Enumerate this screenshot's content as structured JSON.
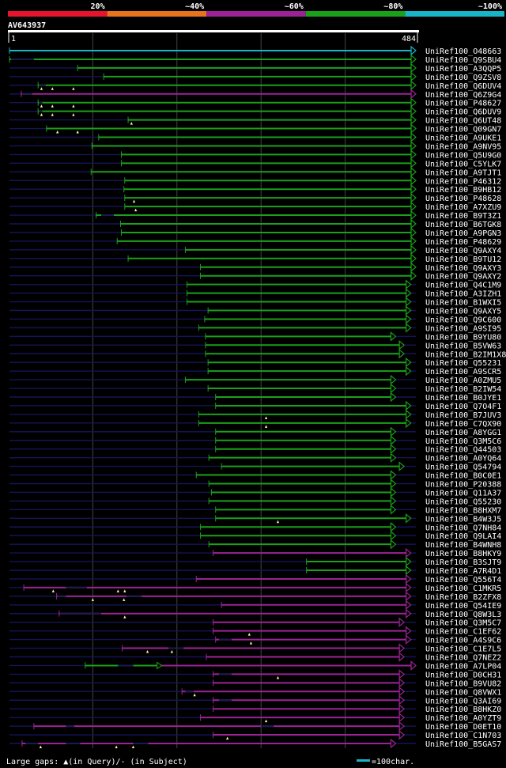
{
  "query": {
    "name": "AV643937",
    "start_label": "1",
    "end_label": "484",
    "length": 484
  },
  "scale_legend": {
    "labels": [
      "20%",
      "~40%",
      "~60%",
      "~80%",
      "~100%"
    ],
    "colors": [
      "#e8142d",
      "#e8731e",
      "#9b2396",
      "#1ba01b",
      "#19b4c8"
    ]
  },
  "identity_colors": {
    "100": "#19b4c8",
    "80": "#1ba01b",
    "60": "#9b2396"
  },
  "footer": {
    "gaps_text": "Large gaps: ▲(in Query)/- (in Subject)",
    "scale_text": "=100char."
  },
  "chart_data": {
    "type": "alignment",
    "x_range": [
      1,
      484
    ],
    "tick_positions": [
      100,
      200,
      300,
      400
    ],
    "hits": [
      {
        "name": "UniRef100_O48663",
        "start": 1,
        "end": 484,
        "identity": "100",
        "open": [],
        "gaps": [],
        "arrow": true
      },
      {
        "name": "UniRef100_Q9SBU4",
        "start": 1,
        "end": 484,
        "identity": "80",
        "open": [
          [
            3,
            30
          ]
        ],
        "gaps": [],
        "arrow": true
      },
      {
        "name": "UniRef100_A3QQP5",
        "start": 82,
        "end": 484,
        "identity": "80",
        "open": [],
        "gaps": [],
        "arrow": true
      },
      {
        "name": "UniRef100_Q9ZSV8",
        "start": 113,
        "end": 484,
        "identity": "80",
        "open": [],
        "gaps": [],
        "arrow": true
      },
      {
        "name": "UniRef100_Q6DUV4",
        "start": 35,
        "end": 484,
        "identity": "80",
        "open": [
          [
            36,
            44
          ]
        ],
        "gaps": [
          39,
          52,
          77
        ],
        "arrow": true
      },
      {
        "name": "UniRef100_Q6Z9G4",
        "start": 15,
        "end": 484,
        "identity": "60",
        "open": [
          [
            16,
            28
          ]
        ],
        "gaps": [],
        "arrow": true
      },
      {
        "name": "UniRef100_P48627",
        "start": 35,
        "end": 484,
        "identity": "80",
        "open": [
          [
            36,
            40
          ]
        ],
        "gaps": [
          39,
          52,
          77
        ],
        "arrow": true
      },
      {
        "name": "UniRef100_Q6DUV9",
        "start": 35,
        "end": 484,
        "identity": "80",
        "open": [
          [
            36,
            40
          ]
        ],
        "gaps": [
          39,
          52,
          77
        ],
        "arrow": true
      },
      {
        "name": "UniRef100_Q6UT48",
        "start": 142,
        "end": 484,
        "identity": "80",
        "open": [],
        "gaps": [
          146
        ],
        "arrow": true
      },
      {
        "name": "UniRef100_Q09GN7",
        "start": 45,
        "end": 484,
        "identity": "80",
        "open": [],
        "gaps": [
          58,
          82
        ],
        "arrow": true
      },
      {
        "name": "UniRef100_A9UKE1",
        "start": 107,
        "end": 484,
        "identity": "80",
        "open": [],
        "gaps": [],
        "arrow": true
      },
      {
        "name": "UniRef100_A9NV95",
        "start": 99,
        "end": 484,
        "identity": "80",
        "open": [],
        "gaps": [],
        "arrow": true
      },
      {
        "name": "UniRef100_Q5U9G0",
        "start": 134,
        "end": 484,
        "identity": "80",
        "open": [],
        "gaps": [],
        "arrow": true
      },
      {
        "name": "UniRef100_C5YLK7",
        "start": 134,
        "end": 484,
        "identity": "80",
        "open": [],
        "gaps": [],
        "arrow": true
      },
      {
        "name": "UniRef100_A9TJT1",
        "start": 98,
        "end": 484,
        "identity": "80",
        "open": [],
        "gaps": [],
        "arrow": true
      },
      {
        "name": "UniRef100_P46312",
        "start": 138,
        "end": 484,
        "identity": "80",
        "open": [],
        "gaps": [],
        "arrow": true
      },
      {
        "name": "UniRef100_B9HB12",
        "start": 137,
        "end": 484,
        "identity": "80",
        "open": [],
        "gaps": [],
        "arrow": true
      },
      {
        "name": "UniRef100_P48628",
        "start": 138,
        "end": 484,
        "identity": "80",
        "open": [],
        "gaps": [
          149
        ],
        "arrow": true
      },
      {
        "name": "UniRef100_A7XZU9",
        "start": 138,
        "end": 484,
        "identity": "80",
        "open": [],
        "gaps": [
          151
        ],
        "arrow": true
      },
      {
        "name": "UniRef100_B9T3Z1",
        "start": 104,
        "end": 484,
        "identity": "80",
        "open": [
          [
            110,
            125
          ]
        ],
        "gaps": [],
        "arrow": true
      },
      {
        "name": "UniRef100_B6TGK8",
        "start": 133,
        "end": 484,
        "identity": "80",
        "open": [],
        "gaps": [],
        "arrow": true
      },
      {
        "name": "UniRef100_A9PGN3",
        "start": 134,
        "end": 484,
        "identity": "80",
        "open": [],
        "gaps": [],
        "arrow": true
      },
      {
        "name": "UniRef100_P48629",
        "start": 129,
        "end": 484,
        "identity": "80",
        "open": [],
        "gaps": [],
        "arrow": true
      },
      {
        "name": "UniRef100_Q9AXY4",
        "start": 210,
        "end": 484,
        "identity": "80",
        "open": [],
        "gaps": [],
        "arrow": true
      },
      {
        "name": "UniRef100_B9TU12",
        "start": 142,
        "end": 484,
        "identity": "80",
        "open": [],
        "gaps": [],
        "arrow": true
      },
      {
        "name": "UniRef100_Q9AXY3",
        "start": 228,
        "end": 484,
        "identity": "80",
        "open": [],
        "gaps": [],
        "arrow": true
      },
      {
        "name": "UniRef100_Q9AXY2",
        "start": 228,
        "end": 484,
        "identity": "80",
        "open": [],
        "gaps": [],
        "arrow": true
      },
      {
        "name": "UniRef100_Q4C1M9",
        "start": 212,
        "end": 478,
        "identity": "80",
        "open": [],
        "gaps": [],
        "arrow": true
      },
      {
        "name": "UniRef100_A3IZH1",
        "start": 212,
        "end": 478,
        "identity": "80",
        "open": [],
        "gaps": [],
        "arrow": true
      },
      {
        "name": "UniRef100_B1WXI5",
        "start": 212,
        "end": 478,
        "identity": "80",
        "open": [],
        "gaps": [],
        "arrow": true
      },
      {
        "name": "UniRef100_Q9AXY5",
        "start": 237,
        "end": 478,
        "identity": "80",
        "open": [],
        "gaps": [],
        "arrow": true
      },
      {
        "name": "UniRef100_Q9C600",
        "start": 233,
        "end": 478,
        "identity": "80",
        "open": [],
        "gaps": [],
        "arrow": true
      },
      {
        "name": "UniRef100_A9SI95",
        "start": 226,
        "end": 478,
        "identity": "80",
        "open": [],
        "gaps": [],
        "arrow": true
      },
      {
        "name": "UniRef100_B9YU80",
        "start": 234,
        "end": 460,
        "identity": "80",
        "open": [],
        "gaps": [],
        "arrow": true
      },
      {
        "name": "UniRef100_B5VW63",
        "start": 234,
        "end": 470,
        "identity": "80",
        "open": [],
        "gaps": [],
        "arrow": true
      },
      {
        "name": "UniRef100_B2IM1X8",
        "start": 234,
        "end": 470,
        "identity": "80",
        "open": [],
        "gaps": [],
        "arrow": true
      },
      {
        "name": "UniRef100_Q55231",
        "start": 237,
        "end": 478,
        "identity": "80",
        "open": [],
        "gaps": [],
        "arrow": true
      },
      {
        "name": "UniRef100_A9SCR5",
        "start": 237,
        "end": 478,
        "identity": "80",
        "open": [],
        "gaps": [],
        "arrow": true
      },
      {
        "name": "UniRef100_A0ZMU5",
        "start": 210,
        "end": 460,
        "identity": "80",
        "open": [],
        "gaps": [],
        "arrow": true
      },
      {
        "name": "UniRef100_B2IW54",
        "start": 237,
        "end": 460,
        "identity": "80",
        "open": [],
        "gaps": [],
        "arrow": true
      },
      {
        "name": "UniRef100_B0JYE1",
        "start": 246,
        "end": 460,
        "identity": "80",
        "open": [],
        "gaps": [],
        "arrow": true
      },
      {
        "name": "UniRef100_Q7O4F1",
        "start": 246,
        "end": 478,
        "identity": "80",
        "open": [],
        "gaps": [],
        "arrow": true
      },
      {
        "name": "UniRef100_B7JUV3",
        "start": 226,
        "end": 478,
        "identity": "80",
        "open": [],
        "gaps": [
          306
        ],
        "arrow": true
      },
      {
        "name": "UniRef100_C7QX90",
        "start": 226,
        "end": 478,
        "identity": "80",
        "open": [],
        "gaps": [
          306
        ],
        "arrow": true
      },
      {
        "name": "UniRef100_A8YGG1",
        "start": 246,
        "end": 460,
        "identity": "80",
        "open": [],
        "gaps": [],
        "arrow": true
      },
      {
        "name": "UniRef100_Q3M5C6",
        "start": 246,
        "end": 460,
        "identity": "80",
        "open": [],
        "gaps": [],
        "arrow": true
      },
      {
        "name": "UniRef100_Q44503",
        "start": 246,
        "end": 460,
        "identity": "80",
        "open": [],
        "gaps": [],
        "arrow": true
      },
      {
        "name": "UniRef100_A0YQ64",
        "start": 238,
        "end": 460,
        "identity": "80",
        "open": [],
        "gaps": [],
        "arrow": true
      },
      {
        "name": "UniRef100_Q54794",
        "start": 253,
        "end": 470,
        "identity": "80",
        "open": [],
        "gaps": [],
        "arrow": true
      },
      {
        "name": "UniRef100_B0C0E1",
        "start": 223,
        "end": 460,
        "identity": "80",
        "open": [],
        "gaps": [],
        "arrow": true
      },
      {
        "name": "UniRef100_P20388",
        "start": 238,
        "end": 460,
        "identity": "80",
        "open": [],
        "gaps": [],
        "arrow": true
      },
      {
        "name": "UniRef100_Q11A37",
        "start": 241,
        "end": 460,
        "identity": "80",
        "open": [],
        "gaps": [],
        "arrow": true
      },
      {
        "name": "UniRef100_Q55230",
        "start": 238,
        "end": 460,
        "identity": "80",
        "open": [],
        "gaps": [],
        "arrow": true
      },
      {
        "name": "UniRef100_B8HXM7",
        "start": 246,
        "end": 460,
        "identity": "80",
        "open": [],
        "gaps": [],
        "arrow": true
      },
      {
        "name": "UniRef100_B4W3J5",
        "start": 246,
        "end": 478,
        "identity": "80",
        "open": [],
        "gaps": [
          320
        ],
        "arrow": true
      },
      {
        "name": "UniRef100_Q7NH84",
        "start": 228,
        "end": 460,
        "identity": "80",
        "open": [],
        "gaps": [],
        "arrow": true
      },
      {
        "name": "UniRef100_Q9LAI4",
        "start": 228,
        "end": 460,
        "identity": "80",
        "open": [],
        "gaps": [],
        "arrow": true
      },
      {
        "name": "UniRef100_B4WNH8",
        "start": 238,
        "end": 460,
        "identity": "80",
        "open": [],
        "gaps": [],
        "arrow": true
      },
      {
        "name": "UniRef100_B8HKY9",
        "start": 243,
        "end": 478,
        "identity": "60",
        "open": [],
        "gaps": [],
        "arrow": true
      },
      {
        "name": "UniRef100_B3SJT9",
        "start": 354,
        "end": 478,
        "identity": "80",
        "open": [],
        "gaps": [],
        "arrow": true
      },
      {
        "name": "UniRef100_A7R4D1",
        "start": 354,
        "end": 478,
        "identity": "80",
        "open": [],
        "gaps": [],
        "arrow": true
      },
      {
        "name": "UniRef100_Q556T4",
        "start": 223,
        "end": 478,
        "identity": "60",
        "open": [],
        "gaps": [],
        "arrow": true
      },
      {
        "name": "UniRef100_C1MKR5",
        "start": 18,
        "end": 478,
        "identity": "60",
        "open": [
          [
            68,
            93
          ]
        ],
        "gaps": [
          53,
          130,
          138
        ],
        "arrow": true
      },
      {
        "name": "UniRef100_B2ZFX8",
        "start": 57,
        "end": 478,
        "identity": "60",
        "open": [
          [
            58,
            68
          ],
          [
            140,
            158
          ]
        ],
        "gaps": [
          100,
          137
        ],
        "arrow": true
      },
      {
        "name": "UniRef100_Q54IE9",
        "start": 253,
        "end": 478,
        "identity": "60",
        "open": [],
        "gaps": [],
        "arrow": true
      },
      {
        "name": "UniRef100_Q8W3L3",
        "start": 60,
        "end": 478,
        "identity": "60",
        "open": [
          [
            61,
            110
          ]
        ],
        "gaps": [
          138
        ],
        "arrow": true
      },
      {
        "name": "UniRef100_Q3M5C7",
        "start": 243,
        "end": 470,
        "identity": "60",
        "open": [],
        "gaps": [],
        "arrow": true
      },
      {
        "name": "UniRef100_C1EF62",
        "start": 243,
        "end": 478,
        "identity": "60",
        "open": [],
        "gaps": [
          286
        ],
        "arrow": true
      },
      {
        "name": "UniRef100_A4S9C6",
        "start": 246,
        "end": 478,
        "identity": "60",
        "open": [
          [
            250,
            265
          ]
        ],
        "gaps": [
          288
        ],
        "arrow": true
      },
      {
        "name": "UniRef100_C1E7L5",
        "start": 135,
        "end": 470,
        "identity": "60",
        "open": [
          [
            190,
            208
          ]
        ],
        "gaps": [
          165,
          194
        ],
        "arrow": true
      },
      {
        "name": "UniRef100_Q7NEZ2",
        "start": 235,
        "end": 470,
        "identity": "60",
        "open": [],
        "gaps": [],
        "arrow": true
      },
      {
        "name": "UniRef100_A7LP04",
        "start": 91,
        "end": 484,
        "identity": "80",
        "open": [
          [
            130,
            148
          ]
        ],
        "gaps": [],
        "arrow": true,
        "split": 182,
        "split_identity": "60"
      },
      {
        "name": "UniRef100_D0CH31",
        "start": 243,
        "end": 470,
        "identity": "60",
        "open": [
          [
            250,
            265
          ]
        ],
        "gaps": [
          320
        ],
        "arrow": true
      },
      {
        "name": "UniRef100_B9VU82",
        "start": 243,
        "end": 470,
        "identity": "60",
        "open": [],
        "gaps": [],
        "arrow": true
      },
      {
        "name": "UniRef100_Q8VWX1",
        "start": 206,
        "end": 470,
        "identity": "60",
        "open": [
          [
            210,
            220
          ]
        ],
        "gaps": [
          221
        ],
        "arrow": true
      },
      {
        "name": "UniRef100_Q3AI69",
        "start": 243,
        "end": 470,
        "identity": "60",
        "open": [
          [
            250,
            265
          ]
        ],
        "gaps": [],
        "arrow": true
      },
      {
        "name": "UniRef100_B8HKZ0",
        "start": 243,
        "end": 470,
        "identity": "60",
        "open": [],
        "gaps": [],
        "arrow": true
      },
      {
        "name": "UniRef100_A0YZT9",
        "start": 228,
        "end": 470,
        "identity": "60",
        "open": [],
        "gaps": [
          306
        ],
        "arrow": true
      },
      {
        "name": "UniRef100_D0ET10",
        "start": 30,
        "end": 470,
        "identity": "60",
        "open": [
          [
            68,
            78
          ],
          [
            300,
            315
          ]
        ],
        "gaps": [],
        "arrow": true
      },
      {
        "name": "UniRef100_C1N703",
        "start": 243,
        "end": 470,
        "identity": "60",
        "open": [],
        "gaps": [
          260
        ],
        "arrow": true
      },
      {
        "name": "UniRef100_B5GAS7",
        "start": 16,
        "end": 460,
        "identity": "60",
        "open": [
          [
            20,
            35
          ],
          [
            68,
            85
          ],
          [
            148,
            166
          ]
        ],
        "gaps": [
          38,
          128,
          148
        ],
        "arrow": true
      }
    ]
  }
}
